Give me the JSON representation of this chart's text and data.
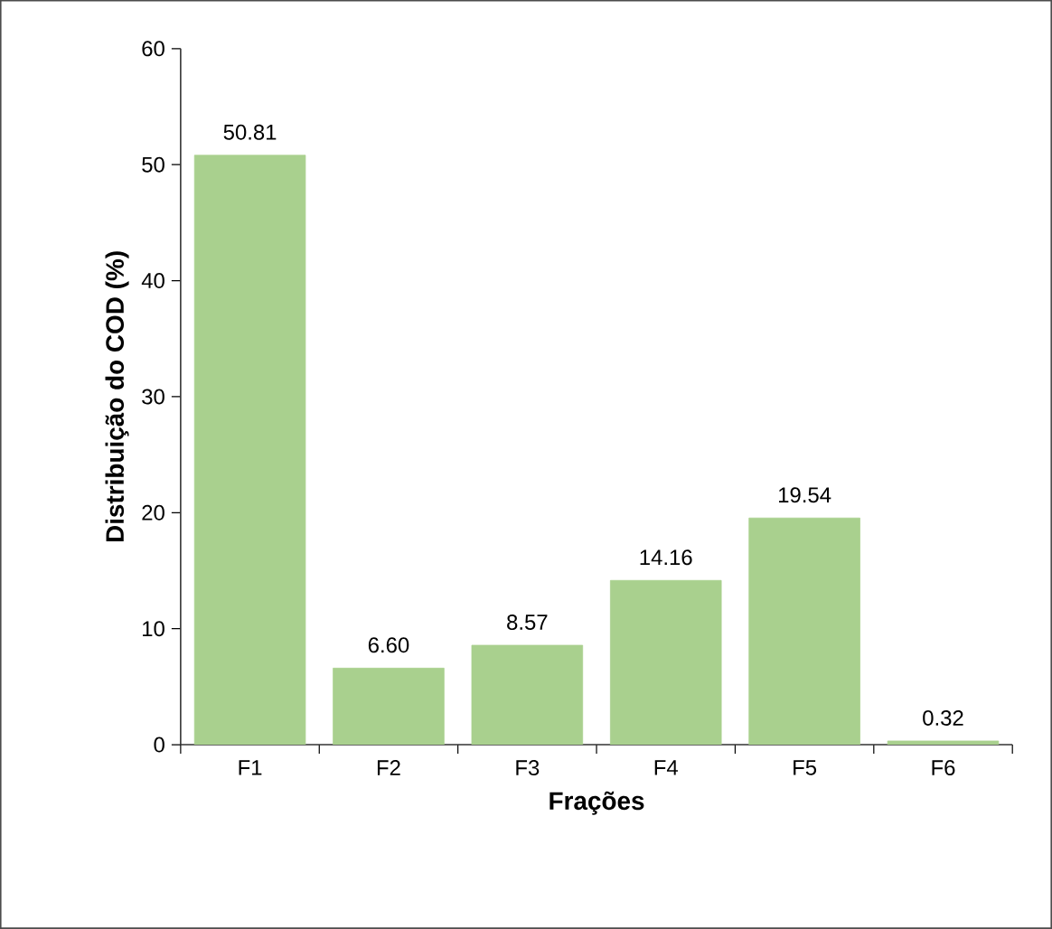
{
  "chart_data": {
    "type": "bar",
    "xlabel": "Frações",
    "ylabel": "Distribuição do COD (%)",
    "categories": [
      "F1",
      "F2",
      "F3",
      "F4",
      "F5",
      "F6"
    ],
    "values": [
      50.81,
      6.6,
      8.57,
      14.16,
      19.54,
      0.32
    ],
    "value_labels": [
      "50.81",
      "6.60",
      "8.57",
      "14.16",
      "19.54",
      "0.32"
    ],
    "color": "#a9d08e",
    "ylim": [
      0,
      60
    ],
    "yticks": [
      0,
      10,
      20,
      30,
      40,
      50,
      60
    ]
  }
}
